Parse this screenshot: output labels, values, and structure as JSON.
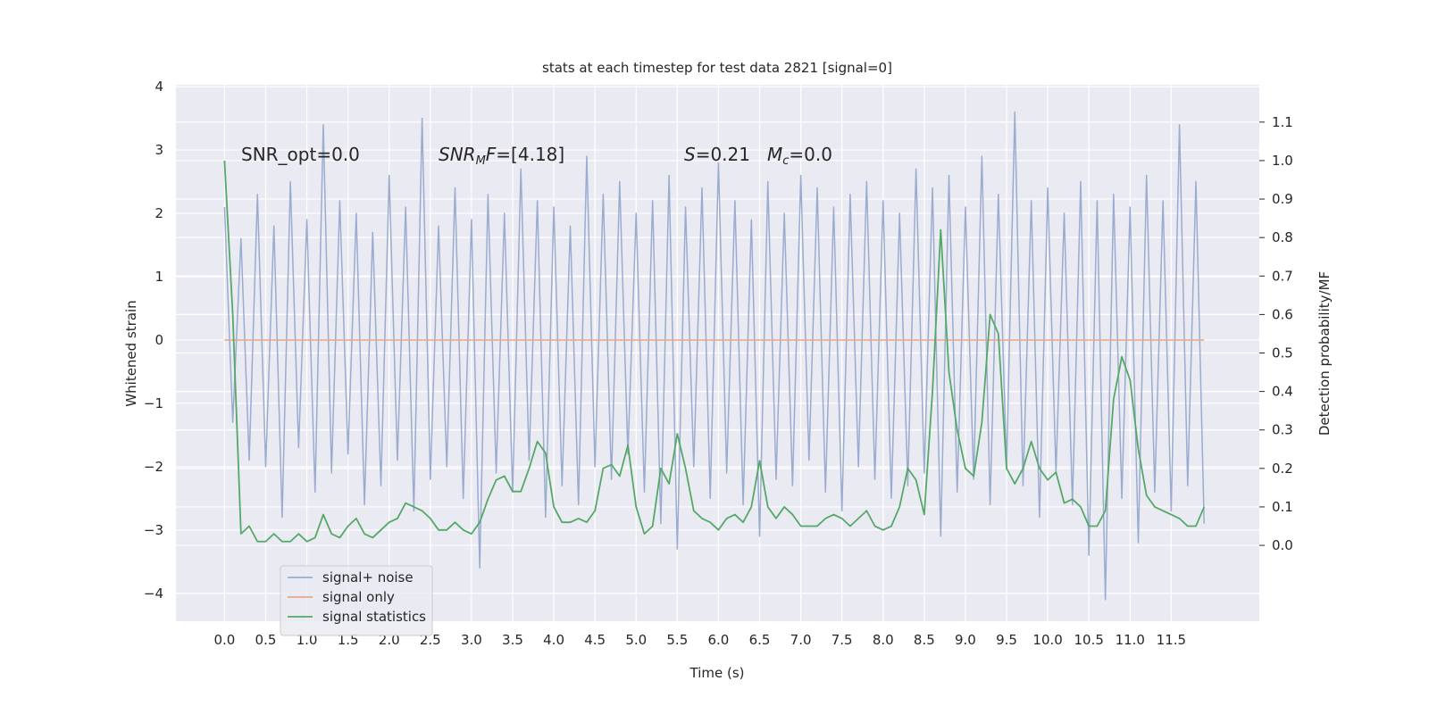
{
  "chart_data": {
    "type": "line",
    "title": "stats at each timestep for test data 2821 [signal=0]",
    "x_label": "Time (s)",
    "y_label": "Whitened strain",
    "y2_label": "Detection probability/MF",
    "xlim": [
      -0.59,
      12.57
    ],
    "ylim": [
      -4.44,
      4.03
    ],
    "y2lim": [
      -0.197,
      1.197
    ],
    "xticks": [
      {
        "value": 0,
        "label": "0.0"
      },
      0.5,
      {
        "value": 1,
        "label": "1.0"
      },
      1.5,
      {
        "value": 2,
        "label": "2.0"
      },
      2.5,
      {
        "value": 3,
        "label": "3.0"
      },
      3.5,
      {
        "value": 4,
        "label": "4.0"
      },
      4.5,
      {
        "value": 5,
        "label": "5.0"
      },
      5.5,
      {
        "value": 6,
        "label": "6.0"
      },
      6.5,
      {
        "value": 7,
        "label": "7.0"
      },
      7.5,
      {
        "value": 8,
        "label": "8.0"
      },
      8.5,
      {
        "value": 9,
        "label": "9.0"
      },
      9.5,
      {
        "value": 10,
        "label": "10.0"
      },
      10.5,
      {
        "value": 11,
        "label": "11.0"
      },
      11.5
    ],
    "yticks": [
      {
        "value": -4,
        "label": "−4"
      },
      {
        "value": -3,
        "label": "−3"
      },
      {
        "value": -2,
        "label": "−2"
      },
      {
        "value": -1,
        "label": "−1"
      },
      0,
      1,
      2,
      3,
      4
    ],
    "y2ticks": [
      {
        "value": 0,
        "label": "0.0"
      },
      0.1,
      0.2,
      0.3,
      0.4,
      0.5,
      0.6,
      0.7,
      0.8,
      0.9,
      {
        "value": 1,
        "label": "1.0"
      },
      1.1
    ],
    "grid": true,
    "legend": "lower left",
    "x": [
      0,
      0.1,
      0.2,
      0.3,
      0.4,
      0.5,
      0.6,
      0.7,
      0.8,
      0.9,
      1,
      1.1,
      1.2,
      1.3,
      1.4,
      1.5,
      1.6,
      1.7,
      1.8,
      1.9,
      2,
      2.1,
      2.2,
      2.3,
      2.4,
      2.5,
      2.6,
      2.7,
      2.8,
      2.9,
      3,
      3.1,
      3.2,
      3.3,
      3.4,
      3.5,
      3.6,
      3.7,
      3.8,
      3.9,
      4,
      4.1,
      4.2,
      4.3,
      4.4,
      4.5,
      4.6,
      4.7,
      4.8,
      4.9,
      5,
      5.1,
      5.2,
      5.3,
      5.4,
      5.5,
      5.6,
      5.7,
      5.8,
      5.9,
      6,
      6.1,
      6.2,
      6.3,
      6.4,
      6.5,
      6.6,
      6.7,
      6.8,
      6.9,
      7,
      7.1,
      7.2,
      7.3,
      7.4,
      7.5,
      7.6,
      7.7,
      7.8,
      7.9,
      8,
      8.1,
      8.2,
      8.3,
      8.4,
      8.5,
      8.6,
      8.7,
      8.8,
      8.9,
      9,
      9.1,
      9.2,
      9.3,
      9.4,
      9.5,
      9.6,
      9.7,
      9.8,
      9.9,
      10,
      10.1,
      10.2,
      10.3,
      10.4,
      10.5,
      10.6,
      10.7,
      10.8,
      10.9,
      11,
      11.1,
      11.2,
      11.3,
      11.4,
      11.5,
      11.6,
      11.7,
      11.8,
      11.9
    ],
    "series": [
      {
        "name": "signal+ noise",
        "color": "#9aaccf",
        "axis": "y",
        "values": [
          2.1,
          -1.3,
          1.6,
          -1.9,
          2.3,
          -2.0,
          1.8,
          -2.8,
          2.5,
          -1.7,
          1.9,
          -2.4,
          3.4,
          -2.1,
          2.2,
          -1.8,
          2.0,
          -2.6,
          1.7,
          -2.3,
          2.6,
          -1.9,
          2.1,
          -2.7,
          3.5,
          -2.2,
          1.8,
          -2.0,
          2.4,
          -2.5,
          1.9,
          -3.6,
          2.3,
          -2.1,
          2.0,
          -2.4,
          2.7,
          -1.9,
          2.2,
          -2.8,
          2.1,
          -2.3,
          1.8,
          -2.6,
          2.9,
          -2.0,
          2.3,
          -2.2,
          2.5,
          -1.8,
          2.0,
          -2.4,
          2.2,
          -2.9,
          2.6,
          -3.3,
          2.1,
          -2.0,
          2.4,
          -2.5,
          2.8,
          -2.1,
          2.2,
          -2.6,
          1.9,
          -3.1,
          2.5,
          -2.2,
          2.0,
          -2.3,
          2.6,
          -1.9,
          2.4,
          -2.4,
          2.1,
          -2.7,
          2.3,
          -2.0,
          2.5,
          -2.2,
          2.2,
          -2.5,
          2.0,
          -2.3,
          2.7,
          -2.1,
          2.4,
          -3.1,
          2.6,
          -2.4,
          2.1,
          -2.2,
          2.9,
          -2.6,
          2.3,
          -2.0,
          3.6,
          -2.3,
          2.2,
          -2.8,
          2.4,
          -2.1,
          2.0,
          -2.6,
          2.5,
          -3.4,
          2.2,
          -4.1,
          2.3,
          -2.5,
          2.1,
          -3.2,
          2.6,
          -2.4,
          2.2,
          -2.7,
          3.4,
          -2.3,
          2.5,
          -2.9
        ]
      },
      {
        "name": "signal only",
        "color": "#e8a68a",
        "axis": "y",
        "x": [
          0,
          11.9
        ],
        "values": [
          0,
          0
        ]
      },
      {
        "name": "signal statistics",
        "color": "#55a868",
        "axis": "y2",
        "values": [
          1.0,
          0.6,
          0.03,
          0.05,
          0.01,
          0.01,
          0.03,
          0.01,
          0.01,
          0.03,
          0.01,
          0.02,
          0.08,
          0.03,
          0.02,
          0.05,
          0.07,
          0.03,
          0.02,
          0.04,
          0.06,
          0.07,
          0.11,
          0.1,
          0.09,
          0.07,
          0.04,
          0.04,
          0.06,
          0.04,
          0.03,
          0.06,
          0.12,
          0.17,
          0.18,
          0.14,
          0.14,
          0.2,
          0.27,
          0.24,
          0.1,
          0.06,
          0.06,
          0.07,
          0.06,
          0.09,
          0.2,
          0.21,
          0.18,
          0.26,
          0.1,
          0.03,
          0.05,
          0.2,
          0.16,
          0.29,
          0.2,
          0.09,
          0.07,
          0.06,
          0.04,
          0.07,
          0.08,
          0.06,
          0.1,
          0.22,
          0.1,
          0.07,
          0.1,
          0.08,
          0.05,
          0.05,
          0.05,
          0.07,
          0.08,
          0.07,
          0.05,
          0.07,
          0.09,
          0.05,
          0.04,
          0.05,
          0.1,
          0.2,
          0.17,
          0.08,
          0.4,
          0.82,
          0.45,
          0.3,
          0.2,
          0.18,
          0.32,
          0.6,
          0.55,
          0.2,
          0.16,
          0.2,
          0.27,
          0.2,
          0.17,
          0.19,
          0.11,
          0.12,
          0.1,
          0.05,
          0.05,
          0.09,
          0.38,
          0.49,
          0.43,
          0.25,
          0.13,
          0.1,
          0.09,
          0.08,
          0.07,
          0.05,
          0.05,
          0.1
        ]
      }
    ],
    "annotations": [
      [
        {
          "text": "SNR_opt=0.0"
        }
      ],
      [
        {
          "text": "SNR",
          "italic": true
        },
        {
          "text": "M",
          "italic": true,
          "sub": true
        },
        {
          "text": "F",
          "italic": true
        },
        {
          "text": "=[4.18]"
        }
      ],
      [
        {
          "text": "S",
          "italic": true
        },
        {
          "text": "=0.21"
        }
      ],
      [
        {
          "text": "M",
          "italic": true
        },
        {
          "text": "c",
          "italic": true,
          "sub": true
        },
        {
          "text": "=0.0"
        }
      ]
    ]
  }
}
